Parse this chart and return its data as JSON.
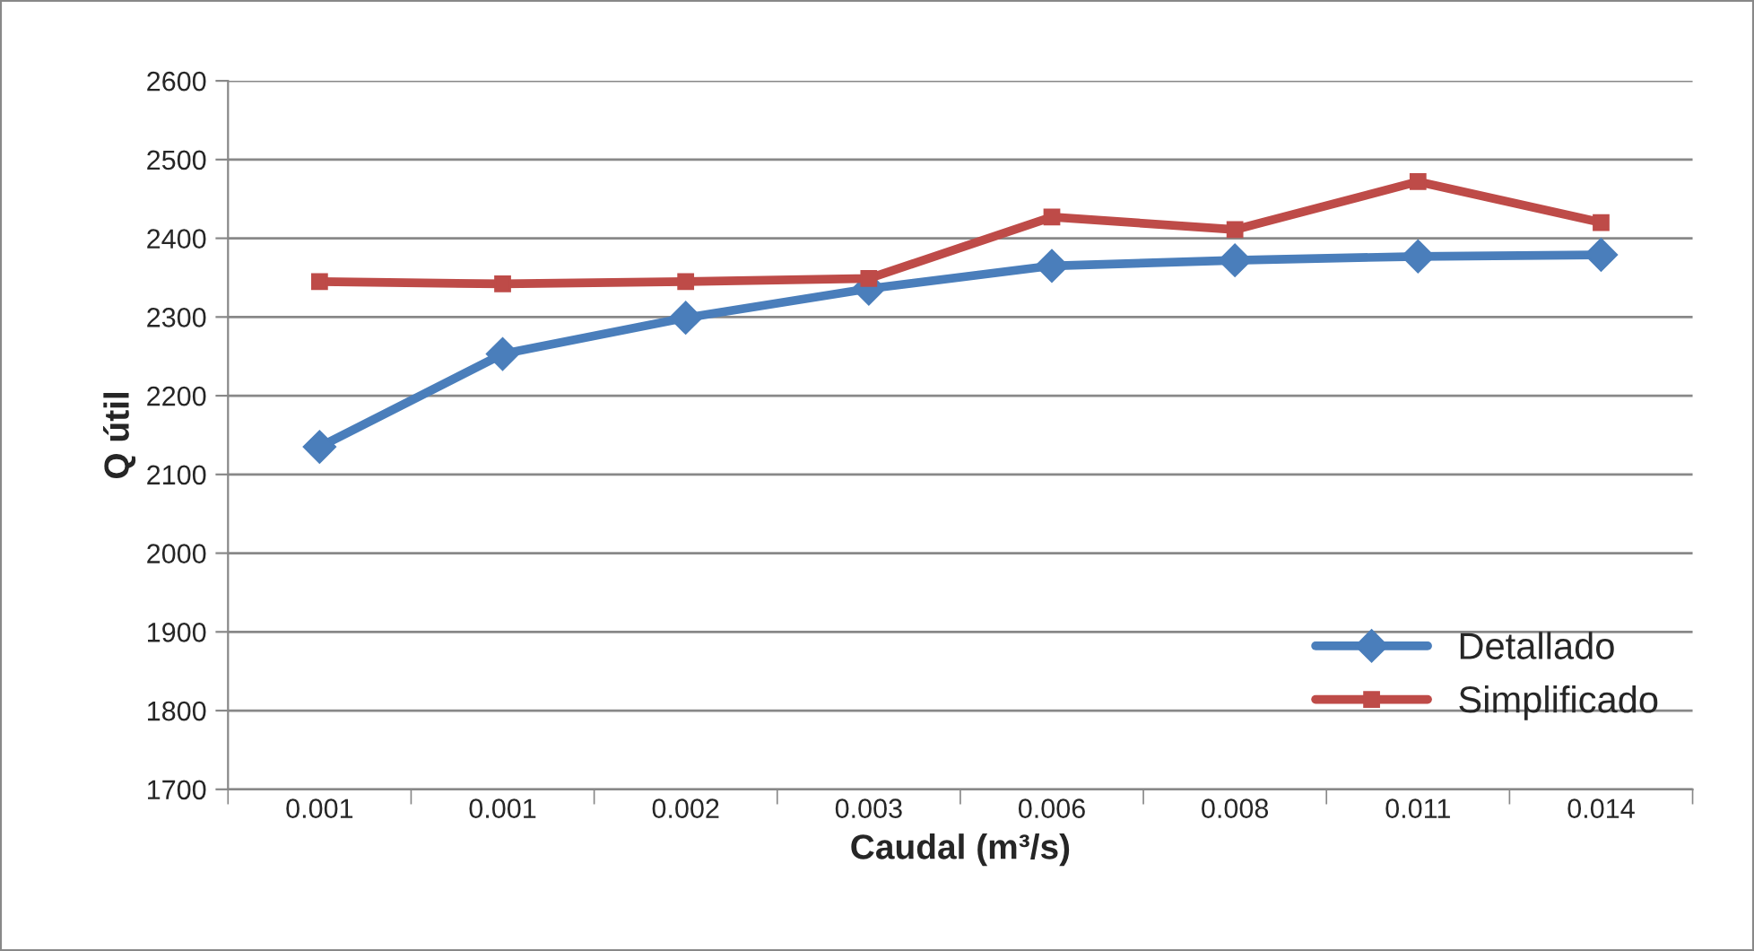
{
  "chart_data": {
    "type": "line",
    "xlabel": "Caudal (m³/s)",
    "ylabel": "Q útil",
    "categories": [
      "0.001",
      "0.001",
      "0.002",
      "0.003",
      "0.006",
      "0.008",
      "0.011",
      "0.014"
    ],
    "series": [
      {
        "name": "Detallado",
        "color": "#4a7ebb",
        "marker": "diamond",
        "values": [
          2135,
          2253,
          2299,
          2336,
          2365,
          2372,
          2377,
          2379
        ]
      },
      {
        "name": "Simplificado",
        "color": "#be4b48",
        "marker": "square",
        "values": [
          2345,
          2342,
          2345,
          2349,
          2427,
          2411,
          2472,
          2420
        ]
      }
    ],
    "ylim": [
      1700,
      2600
    ],
    "yticks": [
      1700,
      1800,
      1900,
      2000,
      2100,
      2200,
      2300,
      2400,
      2500,
      2600
    ],
    "grid": "y",
    "legend": "right"
  }
}
